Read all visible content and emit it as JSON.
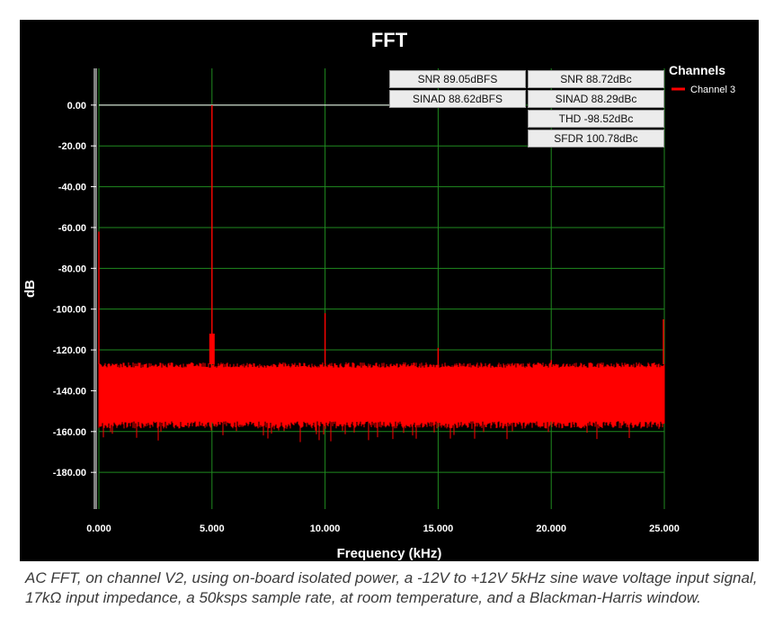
{
  "chart_data": {
    "type": "line",
    "title": "FFT",
    "xlabel": "Frequency (kHz)",
    "ylabel": "dB",
    "xlim": [
      0,
      25
    ],
    "ylim": [
      -198,
      18
    ],
    "x_ticks": [
      0,
      5,
      10,
      15,
      20,
      25
    ],
    "x_tick_labels": [
      "0.000",
      "5.000",
      "10.000",
      "15.000",
      "20.000",
      "25.000"
    ],
    "y_ticks": [
      0,
      -20,
      -40,
      -60,
      -80,
      -100,
      -120,
      -140,
      -160,
      -180
    ],
    "y_tick_labels": [
      "0.00",
      "-20.00",
      "-40.00",
      "-60.00",
      "-80.00",
      "-100.00",
      "-120.00",
      "-140.00",
      "-160.00",
      "-180.00"
    ],
    "grid": true,
    "legend": {
      "title": "Channels",
      "placement": "top-right"
    },
    "colors": {
      "background": "#000000",
      "grid": "#1f8a1f",
      "series": "#ff0000",
      "text": "#ffffff"
    },
    "reference_line": {
      "y": 0,
      "x_range": [
        0,
        13
      ]
    },
    "noise_floor": {
      "upper_db": -127,
      "lower_db": -155
    },
    "series": [
      {
        "name": "Channel 3",
        "peaks": [
          {
            "x": 0.0,
            "y": -62
          },
          {
            "x": 5.0,
            "y": 0
          },
          {
            "x": 10.0,
            "y": -102
          },
          {
            "x": 15.0,
            "y": -119
          },
          {
            "x": 20.0,
            "y": -125
          },
          {
            "x": 25.0,
            "y": -105
          }
        ]
      }
    ],
    "stats": [
      {
        "label": "SNR 89.05dBFS"
      },
      {
        "label": "SNR 88.72dBc"
      },
      {
        "label": "SINAD 88.62dBFS"
      },
      {
        "label": "SINAD 88.29dBc"
      },
      {
        "label": "THD -98.52dBc"
      },
      {
        "label": "SFDR 100.78dBc"
      }
    ]
  },
  "caption": "AC FFT, on channel V2, using on-board isolated power, a -12V to +12V 5kHz sine wave voltage input signal, 17kΩ input impedance, a 50ksps sample rate, at room temperature, and a Blackman-Harris window."
}
